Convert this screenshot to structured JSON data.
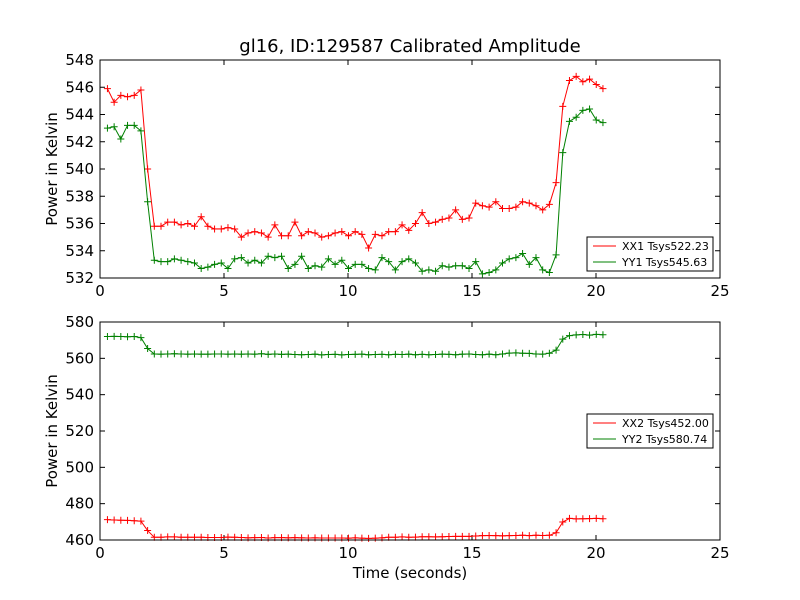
{
  "chart_data": [
    {
      "type": "line",
      "title": "gl16, ID:129587 Calibrated Amplitude",
      "xlabel": "",
      "ylabel": "Power in Kelvin",
      "xlim": [
        0,
        25
      ],
      "ylim": [
        532,
        548
      ],
      "xticks": [
        "0",
        "5",
        "10",
        "15",
        "20",
        "25"
      ],
      "yticks": [
        "532",
        "534",
        "536",
        "538",
        "540",
        "542",
        "544",
        "546",
        "548"
      ],
      "legend_position": "lower-right",
      "grid": false,
      "series": [
        {
          "name": "XX1 Tsys522.23",
          "color": "#ff0000",
          "values": [
            545.9,
            544.9,
            545.4,
            545.3,
            545.4,
            545.8,
            540.0,
            535.8,
            535.8,
            536.1,
            536.1,
            535.9,
            536.0,
            535.8,
            536.5,
            535.8,
            535.6,
            535.6,
            535.7,
            535.6,
            535.0,
            535.3,
            535.4,
            535.3,
            535.0,
            535.9,
            535.1,
            535.1,
            536.1,
            535.1,
            535.4,
            535.3,
            535.0,
            535.1,
            535.3,
            535.4,
            535.1,
            535.4,
            535.2,
            534.2,
            535.2,
            535.1,
            535.4,
            535.4,
            535.9,
            535.5,
            536.0,
            536.8,
            536.0,
            536.1,
            536.3,
            536.4,
            537.0,
            536.3,
            536.4,
            537.5,
            537.3,
            537.2,
            537.6,
            537.1,
            537.1,
            537.2,
            537.6,
            537.5,
            537.3,
            537.0,
            537.4,
            539.0,
            544.6,
            546.5,
            546.8,
            546.4,
            546.6,
            546.2,
            545.9
          ]
        },
        {
          "name": "YY1 Tsys545.63",
          "color": "#008000",
          "values": [
            543.0,
            543.1,
            542.2,
            543.2,
            543.2,
            542.8,
            537.6,
            533.3,
            533.2,
            533.2,
            533.4,
            533.3,
            533.2,
            533.1,
            532.7,
            532.8,
            533.0,
            533.1,
            532.7,
            533.4,
            533.5,
            533.1,
            533.3,
            533.1,
            533.6,
            533.5,
            533.6,
            532.7,
            533.0,
            533.6,
            532.7,
            532.9,
            532.8,
            533.4,
            533.0,
            533.3,
            532.7,
            533.0,
            533.0,
            532.7,
            532.6,
            533.5,
            533.2,
            532.6,
            533.2,
            533.4,
            533.1,
            532.5,
            532.6,
            532.5,
            532.9,
            532.8,
            532.9,
            532.9,
            532.7,
            533.2,
            532.3,
            532.4,
            532.6,
            533.1,
            533.4,
            533.5,
            533.8,
            533.0,
            533.5,
            532.6,
            532.4,
            533.7,
            541.2,
            543.5,
            543.8,
            544.3,
            544.4,
            543.6,
            543.4
          ]
        }
      ]
    },
    {
      "type": "line",
      "title": "",
      "xlabel": "Time (seconds)",
      "ylabel": "Power in Kelvin",
      "xlim": [
        0,
        25
      ],
      "ylim": [
        460,
        580
      ],
      "xticks": [
        "0",
        "5",
        "10",
        "15",
        "20",
        "25"
      ],
      "yticks": [
        "460",
        "480",
        "500",
        "520",
        "540",
        "560",
        "580"
      ],
      "legend_position": "center-right",
      "grid": false,
      "series": [
        {
          "name": "XX2 Tsys452.00",
          "color": "#ff0000",
          "values": [
            471.2,
            471.0,
            470.9,
            470.8,
            470.6,
            470.4,
            465.2,
            461.5,
            461.5,
            461.7,
            461.7,
            461.5,
            461.5,
            461.5,
            461.5,
            461.4,
            461.4,
            461.4,
            461.6,
            461.5,
            461.4,
            461.2,
            461.3,
            461.4,
            461.1,
            461.3,
            461.3,
            461.2,
            461.3,
            461.2,
            461.1,
            461.2,
            461.1,
            461.1,
            461.1,
            461.1,
            461.0,
            461.2,
            461.0,
            460.9,
            461.0,
            461.2,
            461.5,
            461.5,
            461.7,
            461.5,
            461.6,
            461.8,
            461.8,
            461.7,
            461.8,
            461.9,
            462.0,
            462.0,
            462.0,
            462.2,
            462.4,
            462.5,
            462.4,
            462.3,
            462.4,
            462.5,
            462.6,
            462.4,
            462.6,
            462.5,
            462.6,
            464.0,
            469.9,
            471.9,
            471.6,
            471.7,
            471.8,
            471.9,
            471.7
          ]
        },
        {
          "name": "YY2 Tsys580.74",
          "color": "#008000",
          "values": [
            572.0,
            572.1,
            572.0,
            571.9,
            572.0,
            571.4,
            565.4,
            562.4,
            562.3,
            562.4,
            562.5,
            562.4,
            562.3,
            562.4,
            562.3,
            562.3,
            562.4,
            562.4,
            562.3,
            562.4,
            562.3,
            562.4,
            562.3,
            562.5,
            562.2,
            562.4,
            562.2,
            562.3,
            562.1,
            562.0,
            562.1,
            562.3,
            561.9,
            562.1,
            562.2,
            561.9,
            562.1,
            562.2,
            562.3,
            562.0,
            562.1,
            562.2,
            562.0,
            562.2,
            562.1,
            562.3,
            562.0,
            562.2,
            562.0,
            562.1,
            562.3,
            562.2,
            562.0,
            562.3,
            562.4,
            562.1,
            562.0,
            562.3,
            562.0,
            562.4,
            562.9,
            563.0,
            562.8,
            562.7,
            562.4,
            562.3,
            562.8,
            564.5,
            570.6,
            572.5,
            572.9,
            573.1,
            572.8,
            573.2,
            573.0
          ]
        }
      ]
    }
  ]
}
